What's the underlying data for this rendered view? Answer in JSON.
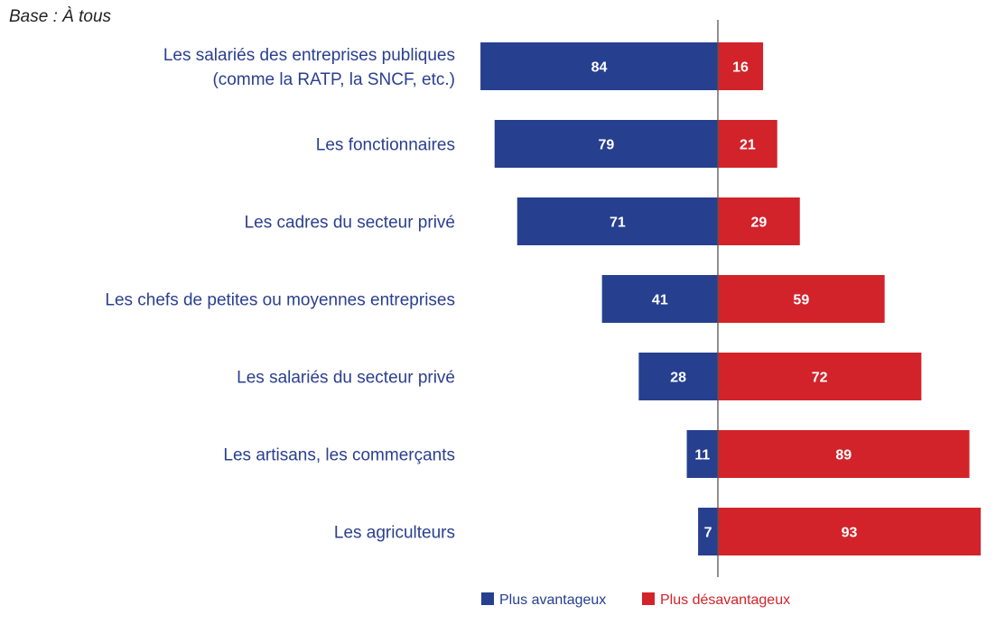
{
  "base_note": "Base : À tous",
  "chart_data": {
    "type": "bar",
    "orientation": "horizontal-diverging",
    "title": "",
    "xlabel": "",
    "ylabel": "",
    "grid": false,
    "xlim": [
      -100,
      100
    ],
    "categories": [
      [
        "Les salariés des entreprises publiques",
        "(comme la RATP, la SNCF, etc.)"
      ],
      [
        "Les fonctionnaires"
      ],
      [
        "Les cadres du secteur privé"
      ],
      [
        "Les chefs de petites ou moyennes entreprises"
      ],
      [
        "Les salariés du secteur privé"
      ],
      [
        "Les artisans, les commerçants"
      ],
      [
        "Les agriculteurs"
      ]
    ],
    "series": [
      {
        "name": "Plus avantageux",
        "color": "#263f8f",
        "direction": "left",
        "values": [
          84,
          79,
          71,
          41,
          28,
          11,
          7
        ]
      },
      {
        "name": "Plus désavantageux",
        "color": "#d2232a",
        "direction": "right",
        "values": [
          16,
          21,
          29,
          59,
          72,
          89,
          93
        ]
      }
    ],
    "legend": {
      "position": "bottom",
      "text_colors": [
        "#263f8f",
        "#d2232a"
      ]
    }
  }
}
